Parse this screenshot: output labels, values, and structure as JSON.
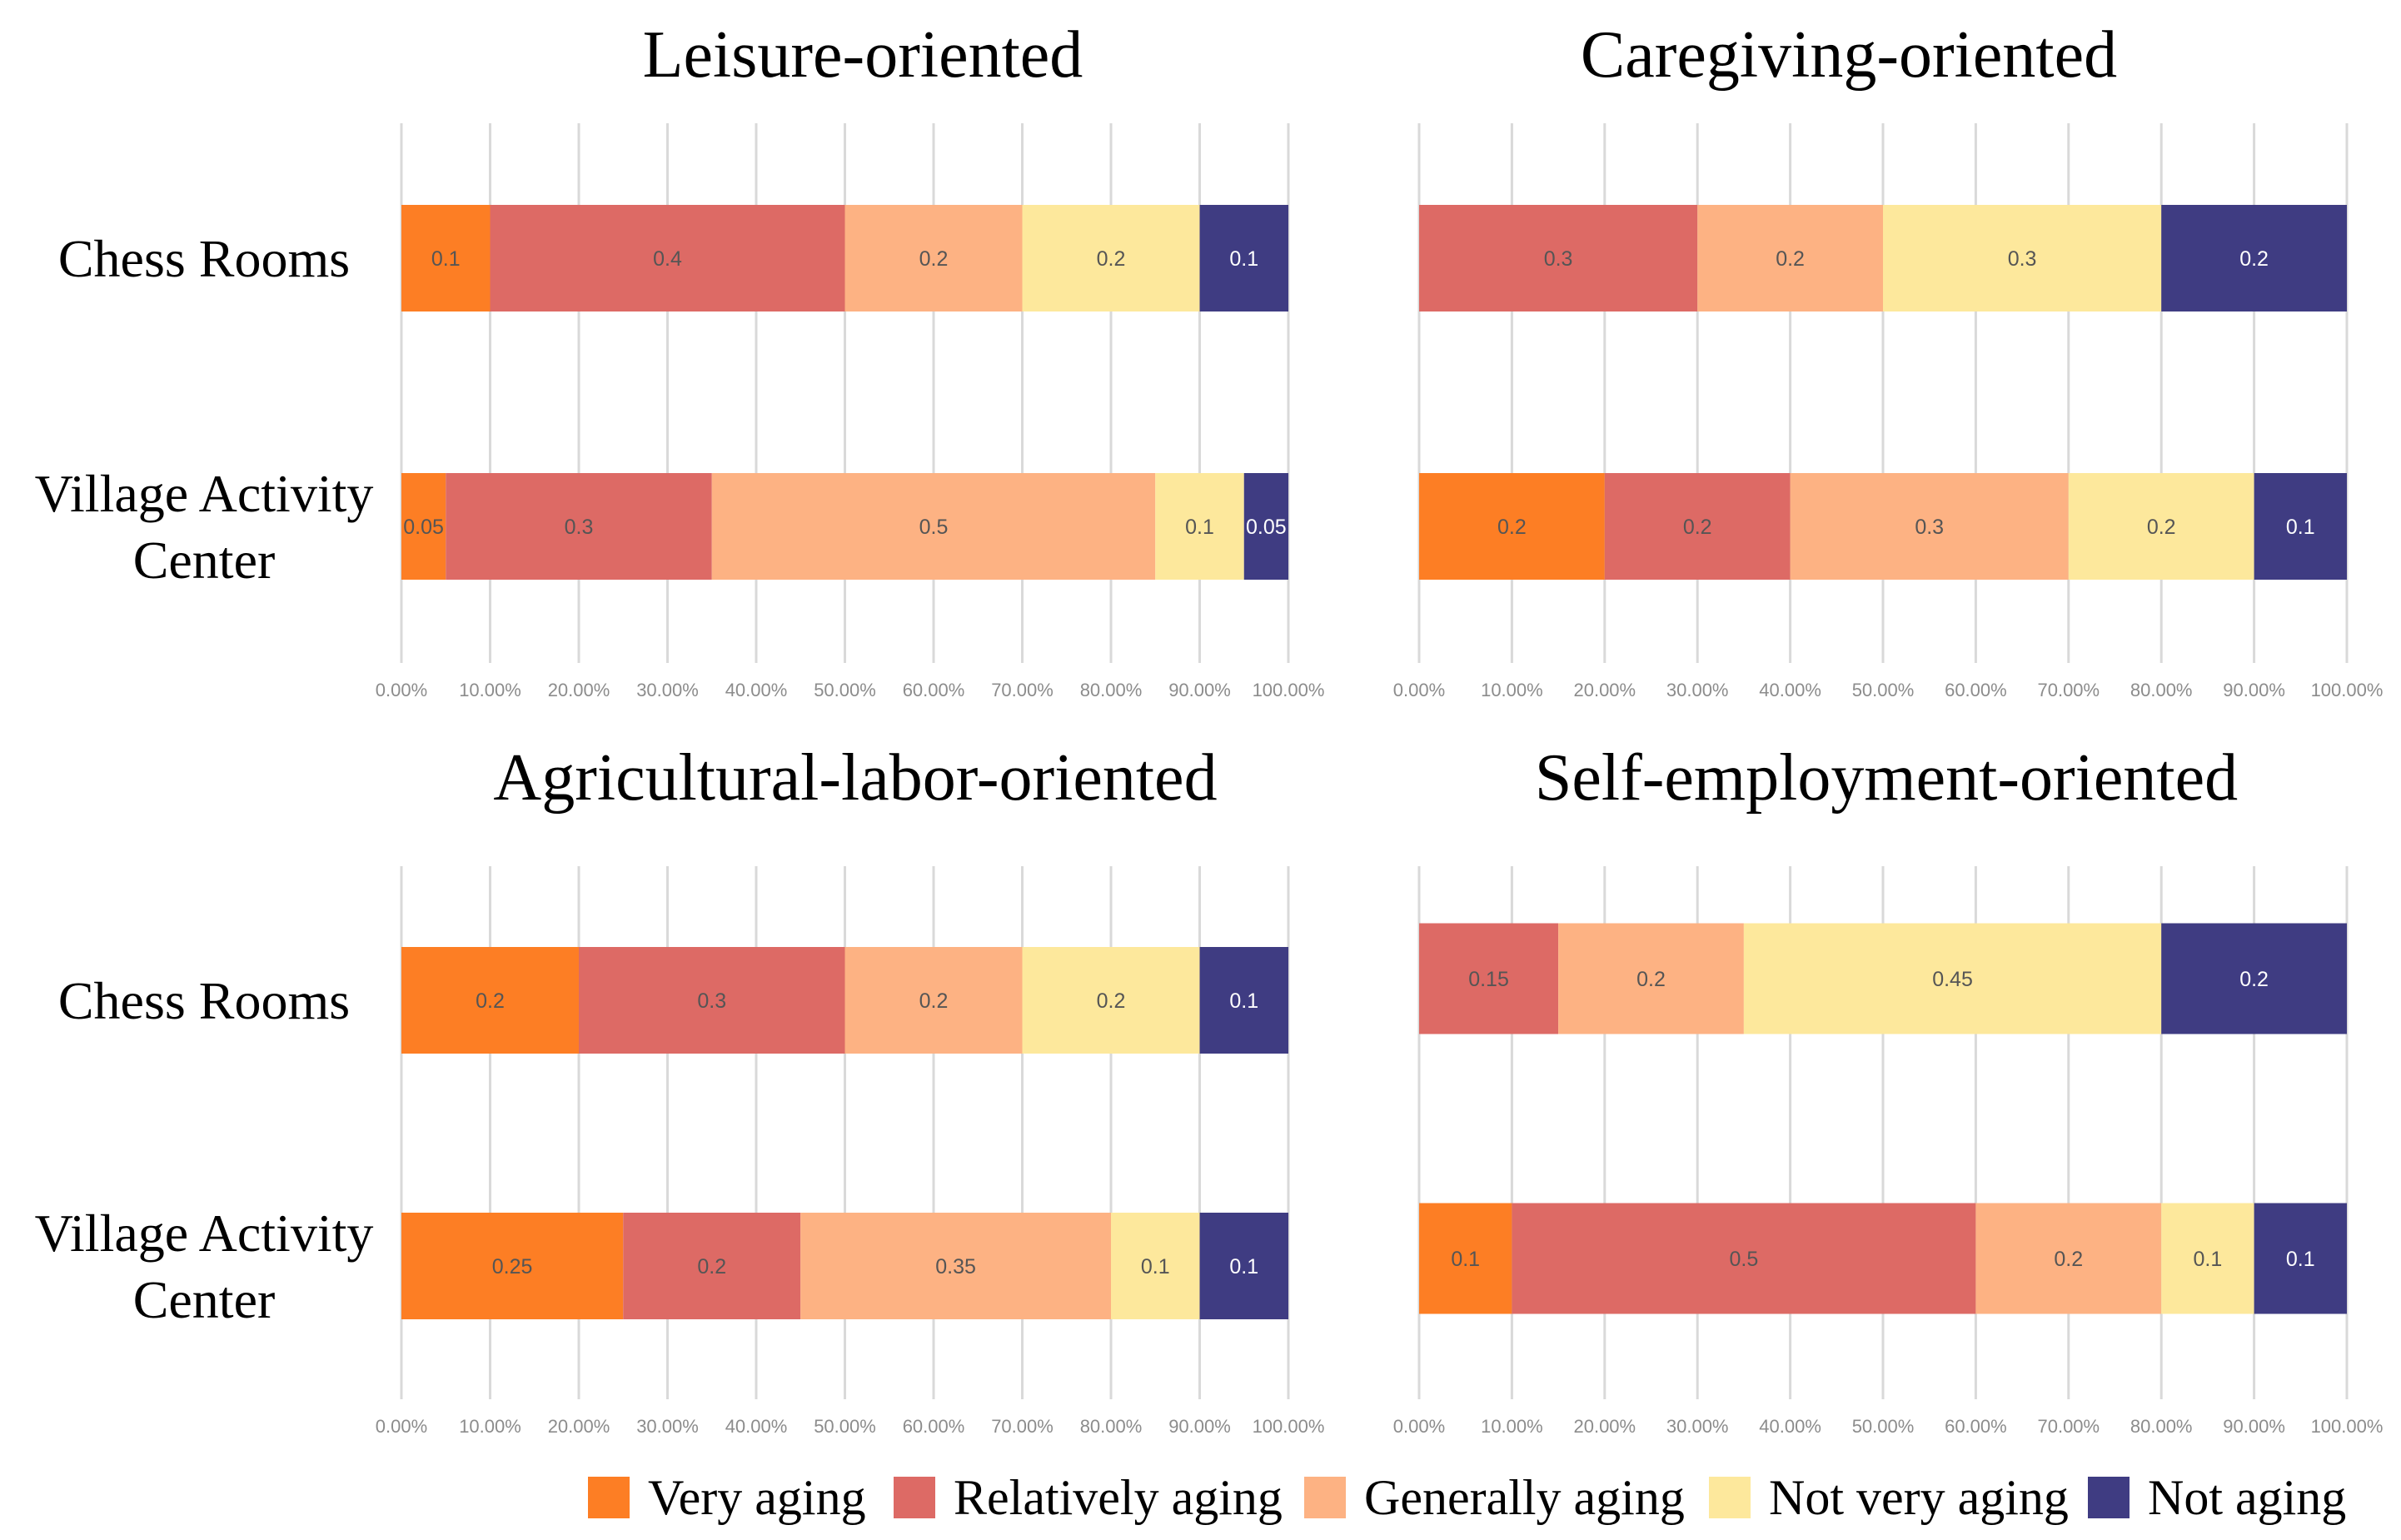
{
  "chart_data": [
    {
      "type": "bar",
      "orientation": "horizontal",
      "stacked": true,
      "title": "Leisure-oriented",
      "categories": [
        "Chess Rooms",
        "Village Activity Center"
      ],
      "category_lines": [
        [
          "Chess Rooms"
        ],
        [
          "Village Activity",
          "Center"
        ]
      ],
      "xlim": [
        0,
        1
      ],
      "xticks": [
        "0.00%",
        "10.00%",
        "20.00%",
        "30.00%",
        "40.00%",
        "50.00%",
        "60.00%",
        "70.00%",
        "80.00%",
        "90.00%",
        "100.00%"
      ],
      "grid": true,
      "series": [
        {
          "name": "Very aging",
          "values": [
            0.1,
            0.05
          ],
          "labels": [
            "0.1",
            "0.05"
          ]
        },
        {
          "name": "Relatively aging",
          "values": [
            0.4,
            0.3
          ],
          "labels": [
            "0.4",
            "0.3"
          ]
        },
        {
          "name": "Generally aging",
          "values": [
            0.2,
            0.5
          ],
          "labels": [
            "0.2",
            "0.5"
          ]
        },
        {
          "name": "Not very aging",
          "values": [
            0.2,
            0.1
          ],
          "labels": [
            "0.2",
            "0.1"
          ]
        },
        {
          "name": "Not aging",
          "values": [
            0.1,
            0.05
          ],
          "labels": [
            "0.1",
            "0.05"
          ]
        }
      ]
    },
    {
      "type": "bar",
      "orientation": "horizontal",
      "stacked": true,
      "title": "Caregiving-oriented",
      "categories": [
        "Chess Rooms",
        "Village Activity Center"
      ],
      "category_lines": [
        [],
        []
      ],
      "xlim": [
        0,
        1
      ],
      "xticks": [
        "0.00%",
        "10.00%",
        "20.00%",
        "30.00%",
        "40.00%",
        "50.00%",
        "60.00%",
        "70.00%",
        "80.00%",
        "90.00%",
        "100.00%"
      ],
      "grid": true,
      "series": [
        {
          "name": "Very aging",
          "values": [
            0,
            0.2
          ],
          "labels": [
            "",
            "0.2"
          ]
        },
        {
          "name": "Relatively aging",
          "values": [
            0.3,
            0.2
          ],
          "labels": [
            "0.3",
            "0.2"
          ]
        },
        {
          "name": "Generally aging",
          "values": [
            0.2,
            0.3
          ],
          "labels": [
            "0.2",
            "0.3"
          ]
        },
        {
          "name": "Not very aging",
          "values": [
            0.3,
            0.2
          ],
          "labels": [
            "0.3",
            "0.2"
          ]
        },
        {
          "name": "Not aging",
          "values": [
            0.2,
            0.1
          ],
          "labels": [
            "0.2",
            "0.1"
          ]
        }
      ]
    },
    {
      "type": "bar",
      "orientation": "horizontal",
      "stacked": true,
      "title": "Agricultural-labor-oriented",
      "categories": [
        "Chess Rooms",
        "Village Activity Center"
      ],
      "category_lines": [
        [
          "Chess Rooms"
        ],
        [
          "Village Activity",
          "Center"
        ]
      ],
      "xlim": [
        0,
        1
      ],
      "xticks": [
        "0.00%",
        "10.00%",
        "20.00%",
        "30.00%",
        "40.00%",
        "50.00%",
        "60.00%",
        "70.00%",
        "80.00%",
        "90.00%",
        "100.00%"
      ],
      "grid": true,
      "series": [
        {
          "name": "Very aging",
          "values": [
            0.2,
            0.25
          ],
          "labels": [
            "0.2",
            "0.25"
          ]
        },
        {
          "name": "Relatively aging",
          "values": [
            0.3,
            0.2
          ],
          "labels": [
            "0.3",
            "0.2"
          ]
        },
        {
          "name": "Generally aging",
          "values": [
            0.2,
            0.35
          ],
          "labels": [
            "0.2",
            "0.35"
          ]
        },
        {
          "name": "Not very aging",
          "values": [
            0.2,
            0.1
          ],
          "labels": [
            "0.2",
            "0.1"
          ]
        },
        {
          "name": "Not aging",
          "values": [
            0.1,
            0.1
          ],
          "labels": [
            "0.1",
            "0.1"
          ]
        }
      ]
    },
    {
      "type": "bar",
      "orientation": "horizontal",
      "stacked": true,
      "title": "Self-employment-oriented",
      "categories": [
        "Chess Rooms",
        "Village Activity Center"
      ],
      "category_lines": [
        [],
        []
      ],
      "xlim": [
        0,
        1
      ],
      "xticks": [
        "0.00%",
        "10.00%",
        "20.00%",
        "30.00%",
        "40.00%",
        "50.00%",
        "60.00%",
        "70.00%",
        "80.00%",
        "90.00%",
        "100.00%"
      ],
      "grid": true,
      "series": [
        {
          "name": "Very aging",
          "values": [
            0,
            0.1
          ],
          "labels": [
            "",
            "0.1"
          ]
        },
        {
          "name": "Relatively aging",
          "values": [
            0.15,
            0.5
          ],
          "labels": [
            "0.15",
            "0.5"
          ]
        },
        {
          "name": "Generally aging",
          "values": [
            0.2,
            0.2
          ],
          "labels": [
            "0.2",
            "0.2"
          ]
        },
        {
          "name": "Not very aging",
          "values": [
            0.45,
            0.1
          ],
          "labels": [
            "0.45",
            "0.1"
          ]
        },
        {
          "name": "Not aging",
          "values": [
            0.2,
            0.1
          ],
          "labels": [
            "0.2",
            "0.1"
          ]
        }
      ]
    }
  ],
  "legend": {
    "position": "bottom-right",
    "items": [
      {
        "name": "Very aging",
        "color": "#fd7e24"
      },
      {
        "name": "Relatively aging",
        "color": "#dd6a65"
      },
      {
        "name": "Generally aging",
        "color": "#fdb283"
      },
      {
        "name": "Not very aging",
        "color": "#fde89c"
      },
      {
        "name": "Not aging",
        "color": "#3f3c82"
      }
    ]
  },
  "colors": {
    "series": [
      "#fd7e24",
      "#dd6a65",
      "#fdb283",
      "#fde89c",
      "#3f3c82"
    ],
    "label_dark": "#555555",
    "label_light": "#ffffff",
    "grid": "#d9d9d9",
    "tick": "#8c8c8c"
  }
}
